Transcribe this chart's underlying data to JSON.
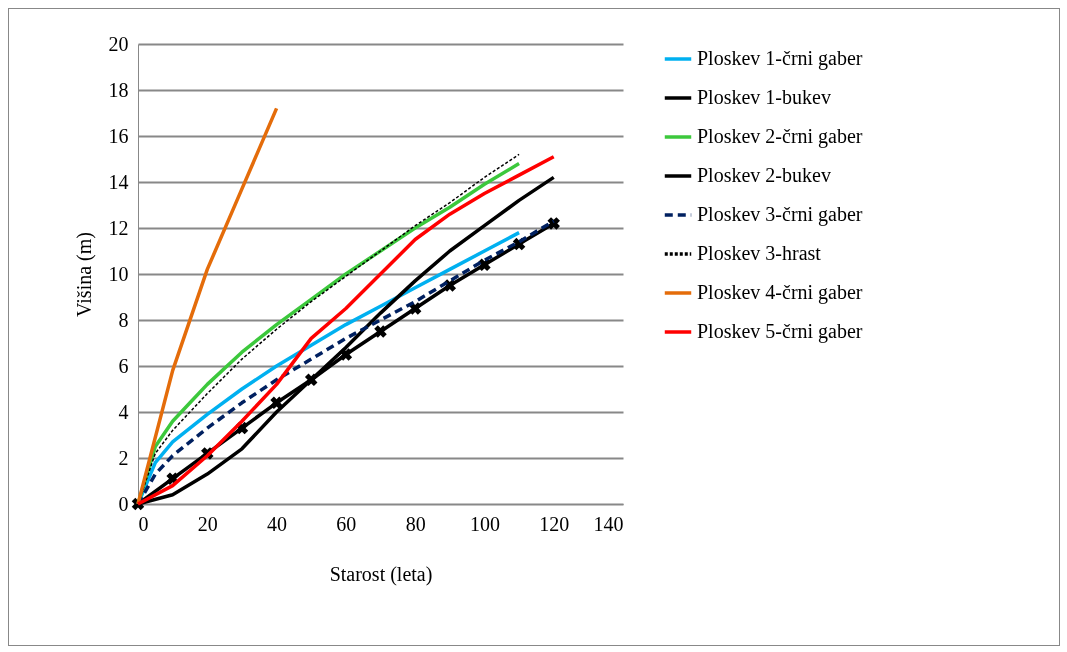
{
  "chart_data": {
    "type": "line",
    "xlabel": "Starost (leta)",
    "ylabel": "Višina (m)",
    "xlim": [
      0,
      140
    ],
    "xticks": [
      0,
      20,
      40,
      60,
      80,
      100,
      120,
      140
    ],
    "ylim": [
      0,
      20
    ],
    "yticks": [
      0,
      2,
      4,
      6,
      8,
      10,
      12,
      14,
      16,
      18,
      20
    ],
    "grid": "y",
    "legend": "right",
    "series": [
      {
        "name": "Ploskev 1-črni gaber",
        "color": "#00b0f0",
        "line_style": "solid",
        "x": [
          0,
          5,
          10,
          20,
          30,
          40,
          50,
          60,
          70,
          80,
          90,
          100,
          110
        ],
        "values": [
          0,
          1.8,
          2.7,
          3.9,
          5.0,
          6.0,
          6.9,
          7.8,
          8.6,
          9.4,
          10.2,
          11.0,
          11.8
        ]
      },
      {
        "name": "Ploskev 1-bukev",
        "color": "#000000",
        "line_style": "solid",
        "marker": "cross",
        "x": [
          0,
          10,
          20,
          30,
          40,
          50,
          60,
          70,
          80,
          90,
          100,
          110,
          120
        ],
        "values": [
          0,
          1.1,
          2.2,
          3.3,
          4.4,
          5.4,
          6.5,
          7.5,
          8.5,
          9.5,
          10.4,
          11.3,
          12.2
        ]
      },
      {
        "name": "Ploskev 2-črni gaber",
        "color": "#3cc83c",
        "line_style": "solid",
        "x": [
          0,
          5,
          10,
          15,
          20,
          30,
          40,
          50,
          60,
          70,
          80,
          90,
          100,
          110
        ],
        "values": [
          0,
          2.5,
          3.6,
          4.4,
          5.2,
          6.6,
          7.8,
          8.9,
          10.0,
          11.0,
          12.0,
          12.9,
          13.9,
          14.8
        ]
      },
      {
        "name": "Ploskev 2-bukev",
        "color": "#000000",
        "line_style": "solid",
        "x": [
          0,
          10,
          20,
          30,
          40,
          50,
          60,
          70,
          80,
          90,
          100,
          110,
          120
        ],
        "values": [
          0,
          0.4,
          1.3,
          2.4,
          4.0,
          5.4,
          6.8,
          8.3,
          9.7,
          11.0,
          12.1,
          13.2,
          14.2
        ]
      },
      {
        "name": "Ploskev 3-črni gaber",
        "color": "#002060",
        "line_style": "dashed",
        "x": [
          0,
          5,
          10,
          20,
          30,
          40,
          50,
          60,
          70,
          80,
          90,
          100,
          110,
          120
        ],
        "values": [
          0,
          1.3,
          2.1,
          3.3,
          4.4,
          5.4,
          6.3,
          7.2,
          8.0,
          8.8,
          9.7,
          10.6,
          11.4,
          12.3
        ]
      },
      {
        "name": "Ploskev 3-hrast",
        "color": "#000000",
        "line_style": "dotted",
        "x": [
          0,
          5,
          10,
          20,
          30,
          40,
          50,
          60,
          70,
          80,
          90,
          100,
          110
        ],
        "values": [
          0,
          2.2,
          3.2,
          4.8,
          6.3,
          7.6,
          8.8,
          9.9,
          11.0,
          12.1,
          13.1,
          14.2,
          15.2
        ]
      },
      {
        "name": "Ploskev 4-črni gaber",
        "color": "#e46c0a",
        "line_style": "solid",
        "x": [
          0,
          10,
          20,
          30,
          40
        ],
        "values": [
          0,
          5.8,
          10.2,
          13.7,
          17.2
        ]
      },
      {
        "name": "Ploskev 5-črni gaber",
        "color": "#ff0000",
        "line_style": "solid",
        "x": [
          0,
          10,
          20,
          30,
          40,
          50,
          60,
          70,
          80,
          90,
          100,
          110,
          120
        ],
        "values": [
          0,
          0.8,
          2.1,
          3.6,
          5.2,
          7.2,
          8.5,
          10.0,
          11.5,
          12.6,
          13.5,
          14.3,
          15.1
        ]
      }
    ]
  }
}
